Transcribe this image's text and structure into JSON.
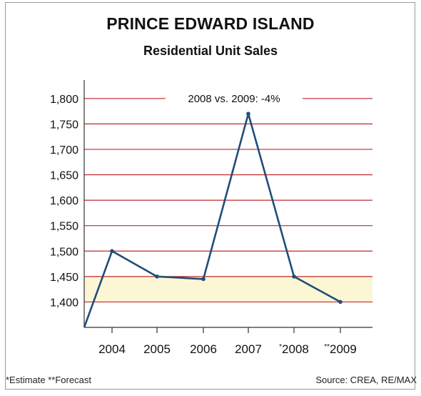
{
  "title": "PRINCE EDWARD ISLAND",
  "subtitle": "Residential Unit Sales",
  "annotation": "2008 vs. 2009: -4%",
  "footnote_left": "*Estimate **Forecast",
  "footnote_right": "Source: CREA, RE/MAX",
  "colors": {
    "line": "#1f4e79",
    "gridline": "#c0282d",
    "highlight_band": "#fcf6d4",
    "axis": "#333333"
  },
  "chart_data": {
    "type": "line",
    "title": "PRINCE EDWARD ISLAND",
    "subtitle": "Residential Unit Sales",
    "xlabel": "",
    "ylabel": "",
    "categories": [
      "2004",
      "2005",
      "2006",
      "2007",
      "2008",
      "2009"
    ],
    "category_markers": [
      "",
      "",
      "",
      "",
      "*",
      "**"
    ],
    "values": [
      1500,
      1450,
      1445,
      1770,
      1450,
      1400
    ],
    "left_edge_value": 1350,
    "ylim": [
      1350,
      1825
    ],
    "yticks": [
      1400,
      1450,
      1500,
      1550,
      1600,
      1650,
      1700,
      1750,
      1800
    ],
    "ytick_labels": [
      "1,400",
      "1,450",
      "1,500",
      "1,550",
      "1,600",
      "1,650",
      "1,700",
      "1,750",
      "1,800"
    ],
    "highlight_band": [
      1400,
      1450
    ],
    "grid": true,
    "annotation": "2008 vs. 2009: -4%"
  }
}
